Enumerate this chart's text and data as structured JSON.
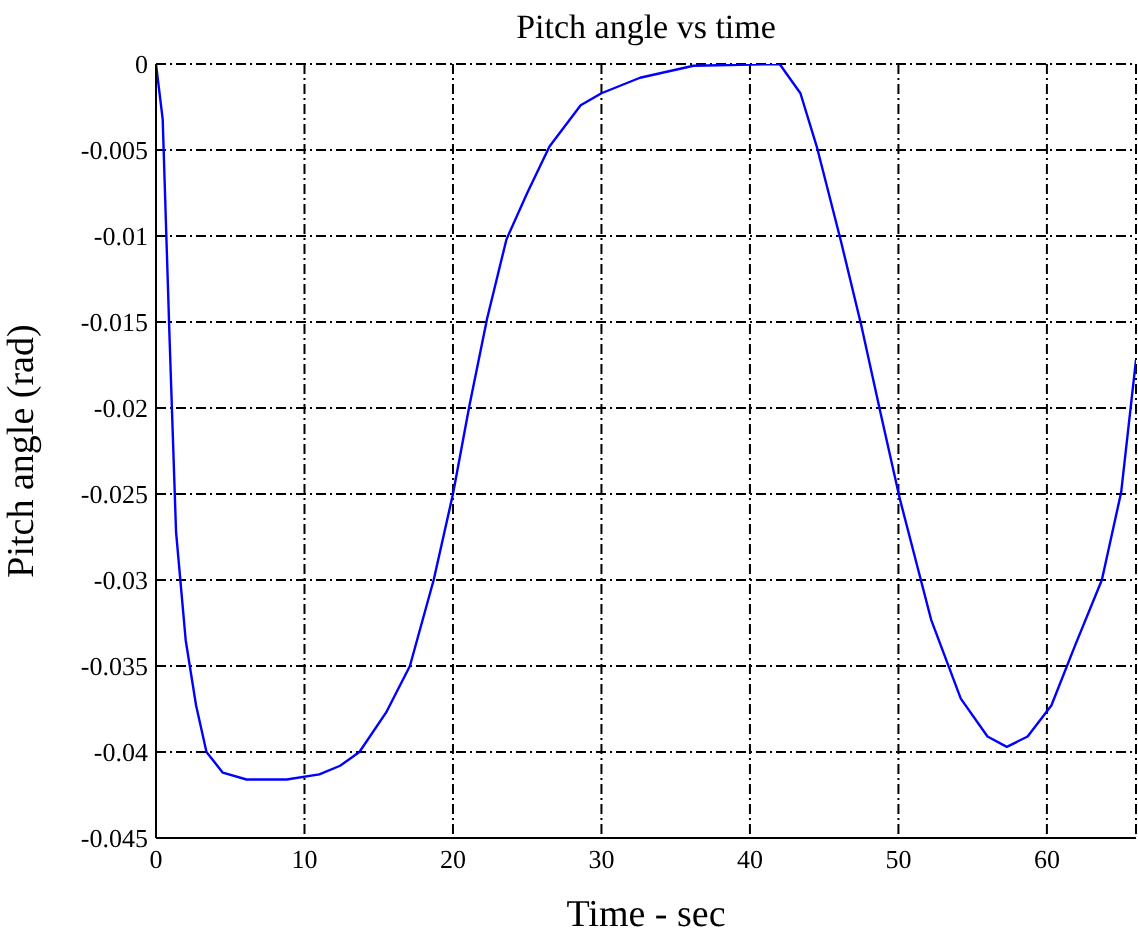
{
  "chart_data": {
    "type": "line",
    "title": "Pitch angle vs time",
    "xlabel": "Time - sec",
    "ylabel": "Pitch angle (rad)",
    "x": [
      0,
      0.45,
      0.9,
      1.35,
      2.0,
      2.7,
      3.4,
      4.5,
      6.1,
      8.8,
      11.0,
      12.4,
      13.7,
      15.5,
      17.1,
      18.7,
      20,
      21.1,
      22.3,
      23.6,
      25,
      26.5,
      28.6,
      30,
      32.6,
      36.2,
      42.0,
      43.4,
      44.5,
      46.1,
      47.5,
      48.8,
      50.1,
      52.2,
      54.2,
      56.0,
      57.3,
      58.7,
      60.3,
      61.9,
      63.7,
      65.0,
      66.0
    ],
    "series": [
      {
        "color": "#0000ff",
        "values": [
          0,
          -0.0032,
          -0.0156,
          -0.0272,
          -0.0335,
          -0.0373,
          -0.04,
          -0.0412,
          -0.0416,
          -0.0416,
          -0.0413,
          -0.0408,
          -0.04,
          -0.0377,
          -0.035,
          -0.03,
          -0.025,
          -0.0199,
          -0.0148,
          -0.0102,
          -0.0075,
          -0.0048,
          -0.0024,
          -0.0017,
          -0.0008,
          -0.0001,
          0,
          -0.0017,
          -0.0048,
          -0.0102,
          -0.0152,
          -0.0203,
          -0.0253,
          -0.0323,
          -0.0369,
          -0.0391,
          -0.0397,
          -0.0391,
          -0.0373,
          -0.0338,
          -0.03,
          -0.0249,
          -0.0172
        ]
      }
    ],
    "xlim": [
      0,
      66
    ],
    "xticks": [
      0,
      10,
      20,
      30,
      40,
      50,
      60
    ],
    "ylim": [
      -0.045,
      0
    ],
    "yticks": [
      -0.045,
      -0.04,
      -0.035,
      -0.03,
      -0.025,
      -0.02,
      -0.015,
      -0.01,
      -0.005,
      0
    ],
    "grid": true,
    "legend": false,
    "marker": "none",
    "line_style": "solid"
  }
}
